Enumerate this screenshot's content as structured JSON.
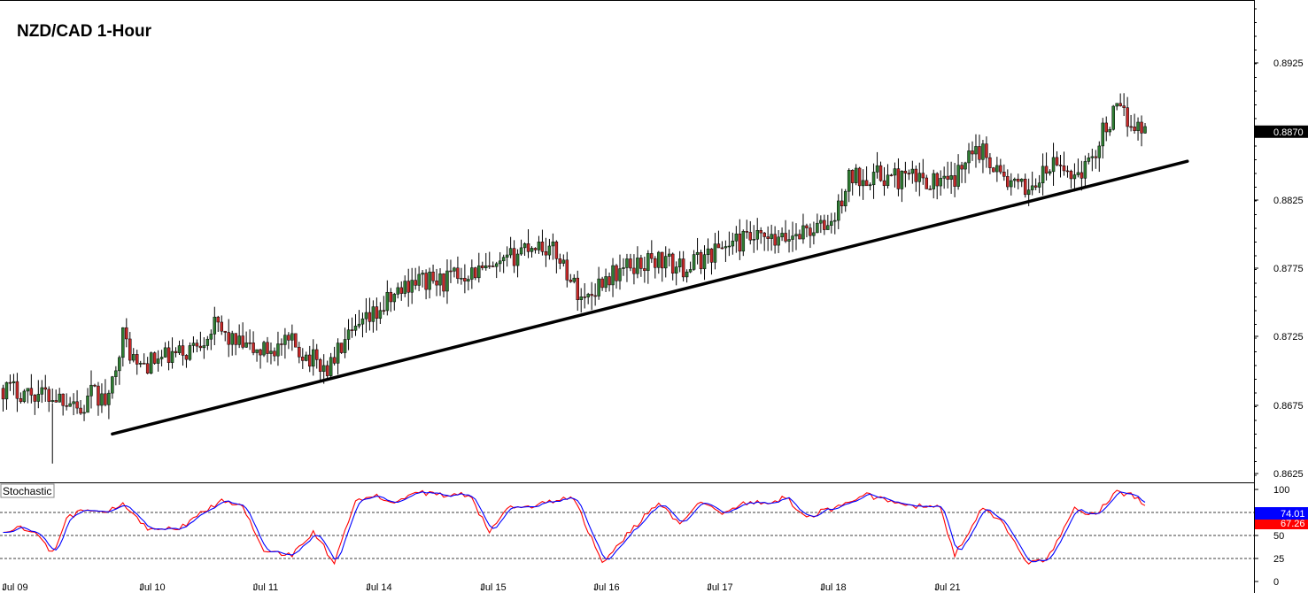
{
  "chart_data": {
    "type": "candlestick",
    "title": "NZD/CAD 1-Hour",
    "x_ticks": [
      "Jul 09",
      "Jul 10",
      "Jul 11",
      "Jul 14",
      "Jul 15",
      "Jul 16",
      "Jul 17",
      "Jul 18",
      "Jul 21"
    ],
    "price_axis": {
      "ticks": [
        "0.8925",
        "0.8875",
        "0.8825",
        "0.8775",
        "0.8725",
        "0.8675",
        "0.8625"
      ],
      "range": [
        0.8609,
        0.8968
      ]
    },
    "current_price_label": "0.8870",
    "up_color": "#2e7d32",
    "down_color": "#c62828",
    "price_path": [
      [
        0,
        0.8679
      ],
      [
        10,
        0.8675
      ],
      [
        20,
        0.8671
      ],
      [
        22,
        0.866
      ],
      [
        25,
        0.8675
      ],
      [
        30,
        0.8668
      ],
      [
        32,
        0.87
      ],
      [
        34,
        0.8718
      ],
      [
        38,
        0.8695
      ],
      [
        44,
        0.87
      ],
      [
        52,
        0.8706
      ],
      [
        60,
        0.8725
      ],
      [
        66,
        0.8712
      ],
      [
        72,
        0.8706
      ],
      [
        82,
        0.8712
      ],
      [
        88,
        0.87
      ],
      [
        92,
        0.8693
      ],
      [
        96,
        0.871
      ],
      [
        102,
        0.8725
      ],
      [
        108,
        0.874
      ],
      [
        116,
        0.876
      ],
      [
        124,
        0.8758
      ],
      [
        132,
        0.8766
      ],
      [
        140,
        0.8766
      ],
      [
        148,
        0.8785
      ],
      [
        152,
        0.8787
      ],
      [
        158,
        0.8777
      ],
      [
        162,
        0.8755
      ],
      [
        165,
        0.8745
      ],
      [
        170,
        0.876
      ],
      [
        178,
        0.877
      ],
      [
        186,
        0.8775
      ],
      [
        192,
        0.8768
      ],
      [
        196,
        0.8772
      ],
      [
        204,
        0.8785
      ],
      [
        212,
        0.879
      ],
      [
        220,
        0.8787
      ],
      [
        226,
        0.8796
      ],
      [
        232,
        0.8798
      ],
      [
        236,
        0.8805
      ],
      [
        240,
        0.8835
      ],
      [
        246,
        0.8838
      ],
      [
        254,
        0.8835
      ],
      [
        262,
        0.8835
      ],
      [
        268,
        0.883
      ],
      [
        272,
        0.884
      ],
      [
        274,
        0.8862
      ],
      [
        280,
        0.885
      ],
      [
        284,
        0.8835
      ],
      [
        288,
        0.8827
      ],
      [
        292,
        0.883
      ],
      [
        298,
        0.8845
      ],
      [
        304,
        0.8838
      ],
      [
        308,
        0.8845
      ],
      [
        312,
        0.887
      ],
      [
        316,
        0.8885
      ],
      [
        320,
        0.8878
      ],
      [
        324,
        0.887
      ]
    ],
    "trendline": {
      "start": [
        31,
        0.8645
      ],
      "end": [
        336,
        0.8848
      ],
      "color": "#000000"
    },
    "stochastic": {
      "label": "Stochastic",
      "ticks": [
        "100",
        "75",
        "50",
        "25",
        "0"
      ],
      "levels": [
        80,
        50,
        20
      ],
      "main_value_label": "74.01",
      "signal_value_label": "67.26",
      "main_color": "#0000ff",
      "signal_color": "#ff0000",
      "path": [
        [
          0,
          55
        ],
        [
          6,
          58
        ],
        [
          10,
          50
        ],
        [
          14,
          30
        ],
        [
          18,
          68
        ],
        [
          24,
          80
        ],
        [
          30,
          77
        ],
        [
          34,
          85
        ],
        [
          40,
          60
        ],
        [
          44,
          55
        ],
        [
          50,
          58
        ],
        [
          56,
          73
        ],
        [
          62,
          88
        ],
        [
          68,
          82
        ],
        [
          74,
          35
        ],
        [
          82,
          28
        ],
        [
          88,
          55
        ],
        [
          94,
          20
        ],
        [
          100,
          90
        ],
        [
          106,
          93
        ],
        [
          112,
          85
        ],
        [
          118,
          97
        ],
        [
          126,
          93
        ],
        [
          132,
          95
        ],
        [
          138,
          55
        ],
        [
          144,
          82
        ],
        [
          150,
          80
        ],
        [
          156,
          88
        ],
        [
          162,
          90
        ],
        [
          170,
          20
        ],
        [
          178,
          55
        ],
        [
          186,
          86
        ],
        [
          192,
          60
        ],
        [
          198,
          88
        ],
        [
          204,
          75
        ],
        [
          210,
          85
        ],
        [
          218,
          85
        ],
        [
          222,
          93
        ],
        [
          228,
          68
        ],
        [
          232,
          76
        ],
        [
          238,
          82
        ],
        [
          244,
          96
        ],
        [
          250,
          88
        ],
        [
          258,
          82
        ],
        [
          266,
          80
        ],
        [
          270,
          28
        ],
        [
          278,
          82
        ],
        [
          284,
          62
        ],
        [
          290,
          20
        ],
        [
          296,
          22
        ],
        [
          304,
          78
        ],
        [
          310,
          72
        ],
        [
          316,
          98
        ],
        [
          322,
          92
        ],
        [
          326,
          74
        ]
      ]
    }
  }
}
